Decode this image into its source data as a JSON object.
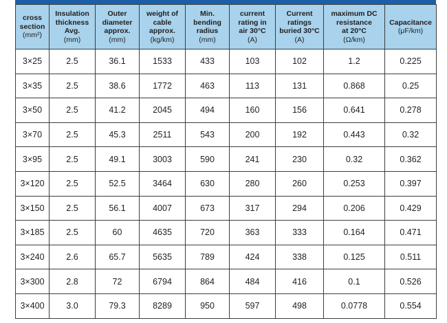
{
  "table": {
    "headers": [
      {
        "lines": [
          "cross",
          "section"
        ],
        "unit": "(mm²)"
      },
      {
        "lines": [
          "Insulation",
          "thickness",
          "Avg."
        ],
        "unit": "(mm)"
      },
      {
        "lines": [
          "Outer",
          "diameter",
          "approx."
        ],
        "unit": "(mm)"
      },
      {
        "lines": [
          "weight of",
          "cable",
          "approx."
        ],
        "unit": "(kg/km)"
      },
      {
        "lines": [
          "Min.",
          "bending",
          "radius"
        ],
        "unit": "(mm)"
      },
      {
        "lines": [
          "current",
          "rating in",
          "air 30°C"
        ],
        "unit": "(A)"
      },
      {
        "lines": [
          "Current",
          "ratings",
          "buried 30°C"
        ],
        "unit": "(A)"
      },
      {
        "lines": [
          "maximum DC",
          "resistance",
          "at 20°C"
        ],
        "unit": "(Ω/km)"
      },
      {
        "lines": [
          "Capacitance"
        ],
        "unit": "(μF/km)"
      }
    ],
    "rows": [
      [
        "3×25",
        "2.5",
        "36.1",
        "1533",
        "433",
        "103",
        "102",
        "1.2",
        "0.225"
      ],
      [
        "3×35",
        "2.5",
        "38.6",
        "1772",
        "463",
        "113",
        "131",
        "0.868",
        "0.25"
      ],
      [
        "3×50",
        "2.5",
        "41.2",
        "2045",
        "494",
        "160",
        "156",
        "0.641",
        "0.278"
      ],
      [
        "3×70",
        "2.5",
        "45.3",
        "2511",
        "543",
        "200",
        "192",
        "0.443",
        "0.32"
      ],
      [
        "3×95",
        "2.5",
        "49.1",
        "3003",
        "590",
        "241",
        "230",
        "0.32",
        "0.362"
      ],
      [
        "3×120",
        "2.5",
        "52.5",
        "3464",
        "630",
        "280",
        "260",
        "0.253",
        "0.397"
      ],
      [
        "3×150",
        "2.5",
        "56.1",
        "4007",
        "673",
        "317",
        "294",
        "0.206",
        "0.429"
      ],
      [
        "3×185",
        "2.5",
        "60",
        "4635",
        "720",
        "363",
        "333",
        "0.164",
        "0.471"
      ],
      [
        "3×240",
        "2.6",
        "65.7",
        "5635",
        "789",
        "424",
        "338",
        "0.125",
        "0.511"
      ],
      [
        "3×300",
        "2.8",
        "72",
        "6794",
        "864",
        "484",
        "416",
        "0.1",
        "0.526"
      ],
      [
        "3×400",
        "3.0",
        "79.3",
        "8289",
        "950",
        "597",
        "498",
        "0.0778",
        "0.554"
      ]
    ]
  },
  "colors": {
    "header_bg": "#a9d2ec",
    "top_bar": "#1a5fa8",
    "border": "#3c3c3c"
  }
}
